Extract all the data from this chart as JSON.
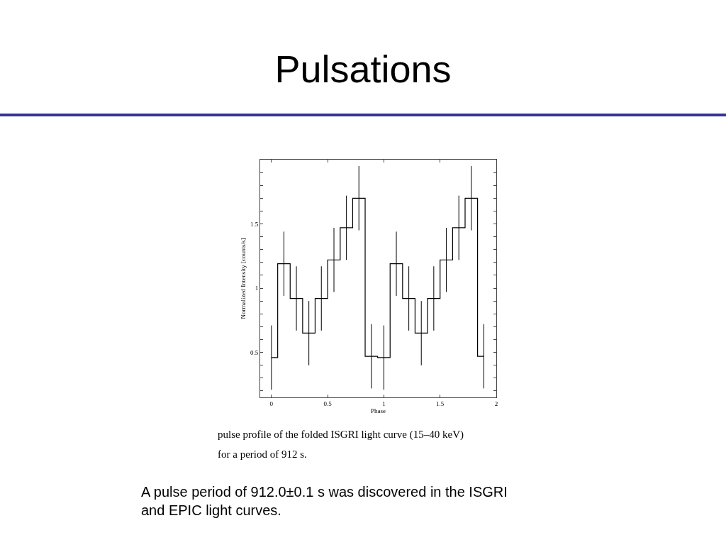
{
  "chart_data": {
    "type": "step",
    "title": "Pulsations",
    "xlabel": "Phase",
    "ylabel": "Normalized Intensity [counts/s]",
    "x": [
      0,
      0.111,
      0.222,
      0.333,
      0.444,
      0.556,
      0.667,
      0.778,
      0.889,
      1.0,
      1.111,
      1.222,
      1.333,
      1.444,
      1.556,
      1.667,
      1.778,
      1.889
    ],
    "series": [
      {
        "color": "#000000",
        "values": [
          0.46,
          1.19,
          0.92,
          0.65,
          0.92,
          1.22,
          1.47,
          1.7,
          0.47,
          0.46,
          1.19,
          0.92,
          0.65,
          0.92,
          1.22,
          1.47,
          1.7,
          0.47
        ],
        "errors": [
          0.25,
          0.25,
          0.25,
          0.25,
          0.25,
          0.25,
          0.25,
          0.25,
          0.25,
          0.25,
          0.25,
          0.25,
          0.25,
          0.25,
          0.25,
          0.25,
          0.25,
          0.25
        ]
      }
    ],
    "xlim": [
      -0.1,
      2.0
    ],
    "ylim": [
      0.15,
      2.0
    ],
    "xticks": [
      0,
      0.5,
      1,
      1.5,
      2
    ],
    "yticks": [
      {
        "value": 0.2,
        "label": null
      },
      {
        "value": 0.3,
        "label": null
      },
      {
        "value": 0.4,
        "label": null
      },
      0.5,
      {
        "value": 0.6,
        "label": null
      },
      {
        "value": 0.7,
        "label": null
      },
      {
        "value": 0.8,
        "label": null
      },
      {
        "value": 0.9,
        "label": null
      },
      1,
      {
        "value": 1.1,
        "label": null
      },
      {
        "value": 1.2,
        "label": null
      },
      {
        "value": 1.3,
        "label": null
      },
      {
        "value": 1.4,
        "label": null
      },
      1.5,
      {
        "value": 1.6,
        "label": null
      },
      {
        "value": 1.7,
        "label": null
      },
      {
        "value": 1.8,
        "label": null
      },
      {
        "value": 1.9,
        "label": null
      }
    ],
    "legend": false,
    "marker": "none",
    "line_style": "solid",
    "annotations": [
      "pulse profile of the folded ISGRI light curve (15–40 keV)",
      "for a period of 912 s.",
      "A pulse period of 912.0±0.1 s was discovered in the ISGRI and EPIC light curves."
    ]
  }
}
